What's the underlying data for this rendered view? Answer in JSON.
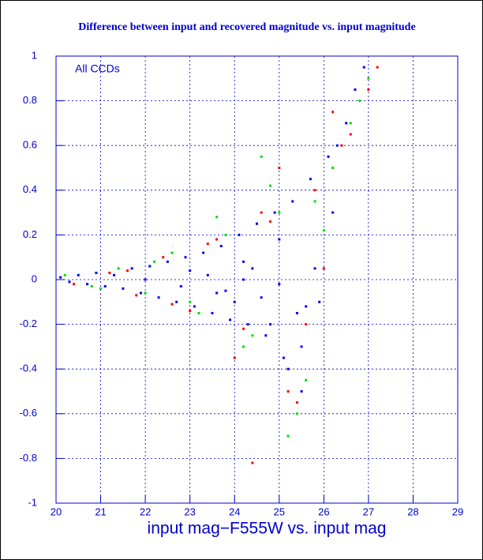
{
  "chart_data": {
    "type": "scatter",
    "title": "Difference between input and recovered magnitude vs. input magnitude",
    "x_label": "input mag−F555W vs. input mag",
    "annotation": "All CCDs",
    "xlim": [
      20,
      29
    ],
    "ylim": [
      -1,
      1
    ],
    "xticks": [
      20,
      21,
      22,
      23,
      24,
      25,
      26,
      27,
      28,
      29
    ],
    "yticks": [
      -1,
      -0.8,
      -0.6,
      -0.4,
      -0.2,
      0,
      0.2,
      0.4,
      0.6,
      0.8,
      1
    ],
    "grid": true,
    "series": [
      {
        "color": "#0000ff",
        "x": [
          20.1,
          20.3,
          20.5,
          20.7,
          20.9,
          21.1,
          21.3,
          21.5,
          21.7,
          21.9,
          22.1,
          22.3,
          22.5,
          22.7,
          22.9,
          23.1,
          23.3,
          23.5,
          23.7,
          23.9,
          24.1,
          24.3,
          24.5,
          24.7,
          24.9,
          25.1,
          25.3,
          25.5,
          25.7,
          25.9,
          26.1,
          26.3,
          26.5,
          26.7,
          26.9,
          22.0,
          22.8,
          23.4,
          23.8,
          24.2,
          24.6,
          25.0,
          25.4,
          25.8,
          26.2,
          24.0,
          24.4,
          24.8,
          25.2,
          25.6,
          23.0,
          23.6,
          24.2,
          25.0,
          25.5
        ],
        "y": [
          0.01,
          -0.01,
          0.02,
          -0.02,
          0.03,
          -0.03,
          0.02,
          -0.04,
          0.05,
          -0.06,
          0.06,
          -0.08,
          0.08,
          -0.1,
          0.1,
          -0.12,
          0.12,
          -0.15,
          0.15,
          -0.18,
          0.2,
          -0.2,
          0.25,
          -0.25,
          0.3,
          -0.35,
          0.35,
          -0.3,
          0.45,
          -0.1,
          0.55,
          0.6,
          0.7,
          0.85,
          0.95,
          0,
          -0.03,
          0.02,
          -0.05,
          0,
          -0.08,
          -0.02,
          -0.15,
          0.05,
          0.3,
          -0.1,
          0.05,
          -0.2,
          -0.4,
          -0.12,
          0.04,
          -0.06,
          0.08,
          0.18,
          -0.5
        ]
      },
      {
        "color": "#00dd00",
        "x": [
          20.2,
          20.8,
          21.4,
          22.0,
          22.6,
          23.2,
          23.8,
          24.4,
          25.0,
          25.6,
          26.2,
          26.8,
          21.0,
          22.2,
          23.0,
          23.6,
          24.2,
          24.8,
          25.4,
          26.0,
          26.6,
          27.0,
          24.6,
          25.2,
          25.8
        ],
        "y": [
          0.02,
          -0.03,
          0.05,
          -0.06,
          0.12,
          -0.15,
          0.2,
          -0.25,
          0.3,
          -0.45,
          0.5,
          0.8,
          -0.04,
          0.08,
          -0.1,
          0.28,
          -0.3,
          0.42,
          -0.6,
          0.22,
          0.7,
          0.9,
          0.55,
          -0.7,
          0.35
        ]
      },
      {
        "color": "#ff0000",
        "x": [
          20.4,
          21.2,
          21.8,
          22.4,
          23.0,
          23.6,
          24.2,
          24.8,
          25.4,
          26.0,
          26.6,
          27.2,
          21.6,
          22.6,
          23.4,
          24.0,
          24.6,
          25.2,
          25.8,
          26.4,
          27.0,
          24.4,
          25.0,
          25.6,
          26.2
        ],
        "y": [
          -0.02,
          0.03,
          -0.07,
          0.1,
          -0.14,
          0.18,
          -0.22,
          0.26,
          -0.55,
          0.05,
          0.65,
          0.95,
          0.04,
          -0.11,
          0.16,
          -0.35,
          0.3,
          -0.5,
          0.4,
          0.6,
          0.85,
          -0.82,
          0.5,
          -0.2,
          0.75
        ]
      }
    ]
  }
}
